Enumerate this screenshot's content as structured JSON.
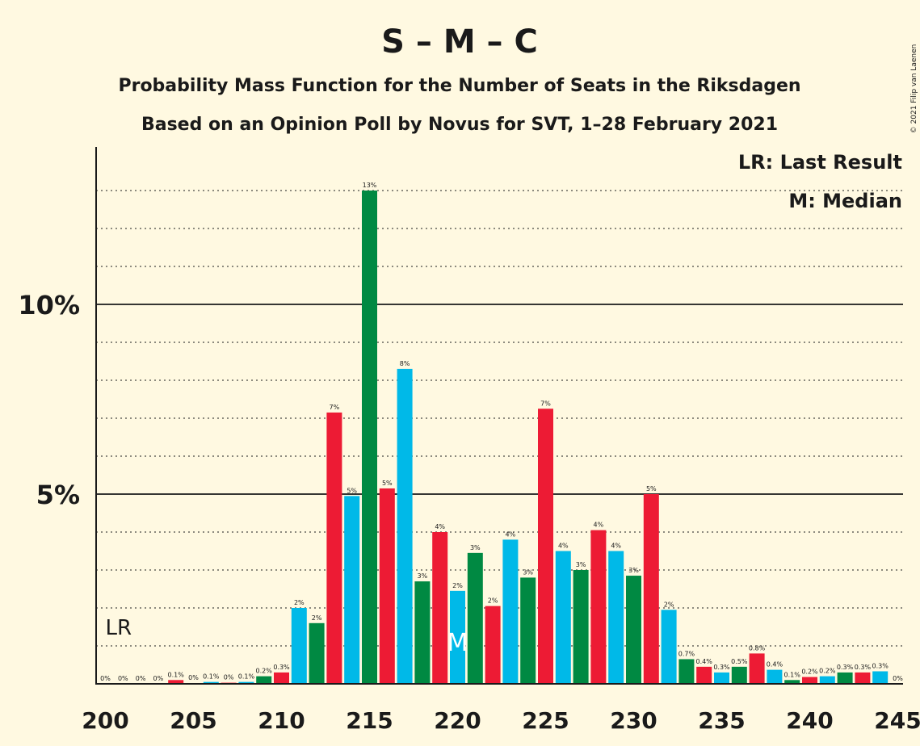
{
  "title": "S – M – C",
  "subtitle1": "Probability Mass Function for the Number of Seats in the Riksdagen",
  "subtitle2": "Based on an Opinion Poll by Novus for SVT, 1–28 February 2021",
  "legend": {
    "lr": "LR: Last Result",
    "m": "M: Median"
  },
  "copyright": "© 2021 Filip van Laenen",
  "markers": {
    "lr_label": "LR",
    "lr_seat": 200,
    "m_label": "M",
    "m_seat": 220
  },
  "colors": {
    "red": "#ed1b34",
    "green": "#008942",
    "blue": "#00b9e8",
    "background": "#fff9e1"
  },
  "chart_data": {
    "type": "bar",
    "x": [
      200,
      201,
      202,
      203,
      204,
      205,
      206,
      207,
      208,
      209,
      210,
      211,
      212,
      213,
      214,
      215,
      216,
      217,
      218,
      219,
      220,
      221,
      222,
      223,
      224,
      225,
      226,
      227,
      228,
      229,
      230,
      231,
      232,
      233,
      234,
      235,
      236,
      237,
      238,
      239,
      240,
      241,
      242,
      243,
      244,
      245
    ],
    "values": [
      0,
      0,
      0,
      0,
      0.1,
      0.02,
      0.05,
      0.03,
      0.05,
      0.2,
      0.3,
      2.0,
      1.6,
      7.15,
      4.95,
      13.0,
      5.15,
      8.3,
      2.7,
      4.0,
      2.45,
      3.45,
      2.05,
      3.8,
      2.8,
      7.25,
      3.5,
      3.0,
      4.05,
      3.5,
      2.85,
      5.0,
      1.95,
      0.65,
      0.45,
      0.3,
      0.45,
      0.8,
      0.37,
      0.1,
      0.18,
      0.2,
      0.3,
      0.3,
      0.33,
      0
    ],
    "labels": [
      "0%",
      "0%",
      "0%",
      "0%",
      "0.1%",
      "0%",
      "0.1%",
      "0%",
      "0.1%",
      "0.2%",
      "0.3%",
      "2%",
      "2%",
      "7%",
      "5%",
      "13%",
      "5%",
      "8%",
      "3%",
      "4%",
      "2%",
      "3%",
      "2%",
      "4%",
      "3%",
      "7%",
      "4%",
      "3%",
      "4%",
      "4%",
      "3%",
      "5%",
      "2%",
      "0.7%",
      "0.4%",
      "0.3%",
      "0.5%",
      "0.8%",
      "0.4%",
      "0.1%",
      "0.2%",
      "0.2%",
      "0.3%",
      "0.3%",
      "0.3%",
      "0%"
    ],
    "colors": [
      "blue",
      "green",
      "red",
      "blue",
      "red",
      "green",
      "blue",
      "red",
      "blue",
      "green",
      "red",
      "blue",
      "green",
      "red",
      "blue",
      "green",
      "red",
      "blue",
      "green",
      "red",
      "blue",
      "green",
      "red",
      "blue",
      "green",
      "red",
      "blue",
      "green",
      "red",
      "blue",
      "green",
      "red",
      "blue",
      "green",
      "red",
      "blue",
      "green",
      "red",
      "blue",
      "green",
      "red",
      "blue",
      "green",
      "red",
      "blue",
      "green"
    ],
    "yticks": [
      {
        "value": 5,
        "label": "5%"
      },
      {
        "value": 10,
        "label": "10%"
      }
    ],
    "xticks": [
      200,
      205,
      210,
      215,
      220,
      225,
      230,
      235,
      240,
      245
    ],
    "ylim": [
      0,
      14
    ],
    "grid": "dotted every 1%, solid at 5% and 10%"
  }
}
